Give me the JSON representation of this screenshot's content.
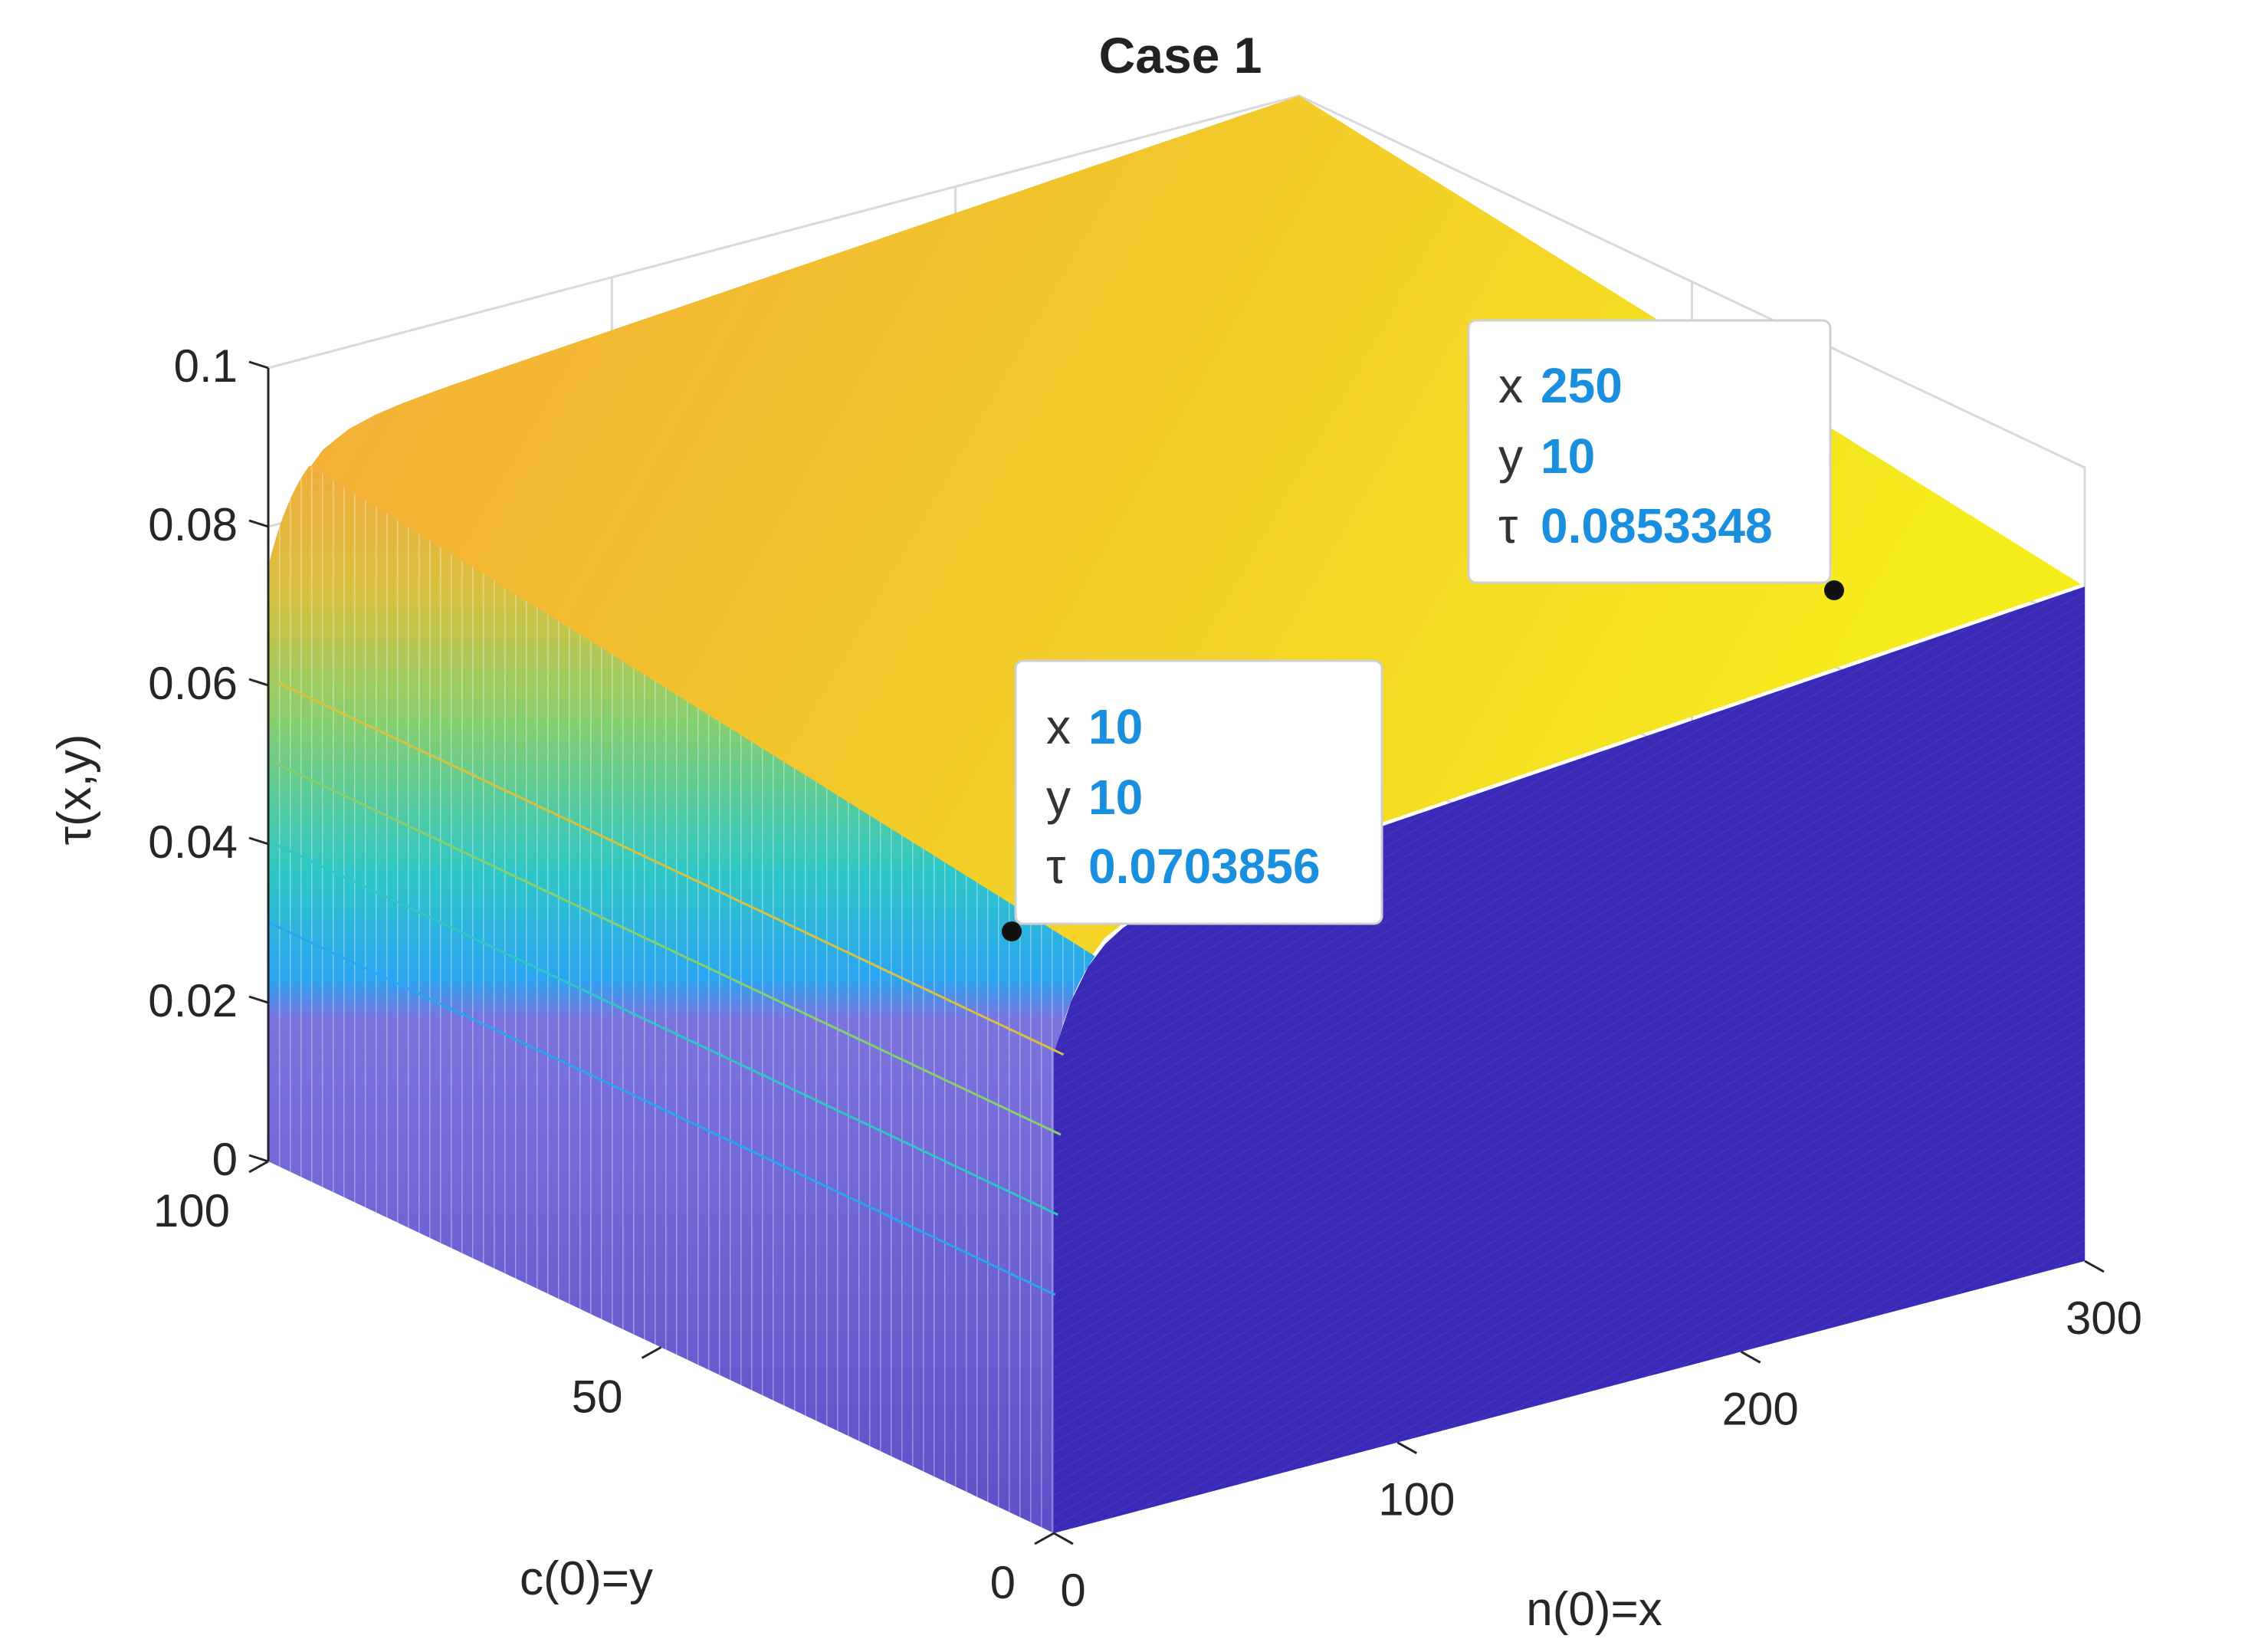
{
  "chart_data": {
    "type": "surface3d",
    "title": "Case 1",
    "xlabel": "n(0)=x",
    "ylabel": "c(0)=y",
    "zlabel": "τ(x,y)",
    "xlim": [
      0,
      300
    ],
    "ylim": [
      0,
      100
    ],
    "zlim": [
      0,
      0.1
    ],
    "x_ticks": [
      "0",
      "100",
      "200",
      "300"
    ],
    "y_ticks": [
      "0",
      "50",
      "100"
    ],
    "z_ticks": [
      "0",
      "0.02",
      "0.04",
      "0.06",
      "0.08",
      "0.1"
    ],
    "colormap": [
      "#3e26a8",
      "#2f7eef",
      "#23c0c4",
      "#7ecd6c",
      "#ecb536",
      "#f9fb15"
    ],
    "grid": true,
    "datatips": [
      {
        "x_key": "x",
        "x_value": "10",
        "y_key": "y",
        "y_value": "10",
        "z_key": "τ",
        "z_value": "0.0703856"
      },
      {
        "x_key": "x",
        "x_value": "250",
        "y_key": "y",
        "y_value": "10",
        "z_key": "τ",
        "z_value": "0.0853348"
      }
    ]
  }
}
